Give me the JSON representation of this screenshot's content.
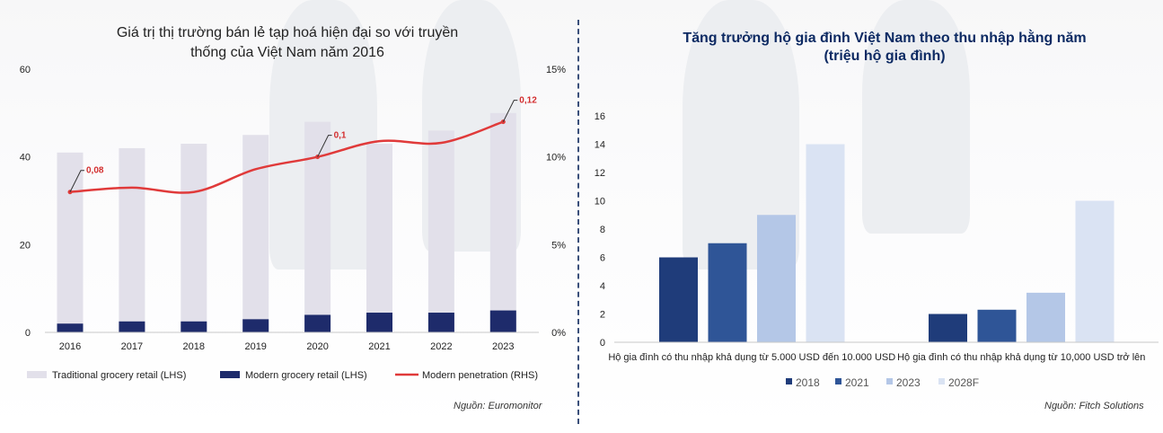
{
  "left_chart": {
    "title_line1": "Giá trị thị trường bán lẻ tạp hoá hiện đại so với truyền",
    "title_line2": "thống của Việt Nam năm 2016",
    "source": "Nguồn: Euromonitor",
    "chart_data": {
      "type": "bar",
      "categories": [
        "2016",
        "2017",
        "2018",
        "2019",
        "2020",
        "2021",
        "2022",
        "2023"
      ],
      "series": [
        {
          "name": "Traditional grocery retail (LHS)",
          "kind": "bar",
          "axis": "left",
          "color": "#e2e0ea",
          "values": [
            41,
            42,
            43,
            45,
            48,
            43,
            46,
            50
          ]
        },
        {
          "name": "Modern grocery retail (LHS)",
          "kind": "bar",
          "axis": "left",
          "color": "#1e2b6b",
          "values": [
            2,
            2.5,
            2.5,
            3,
            4,
            4.5,
            4.5,
            5
          ]
        },
        {
          "name": "Modern penetration (RHS)",
          "kind": "line",
          "axis": "right",
          "color": "#e03a3a",
          "values": [
            0.08,
            0.0825,
            0.08,
            0.093,
            0.1,
            0.109,
            0.108,
            0.12
          ]
        }
      ],
      "y_left": {
        "ylim": [
          0,
          60
        ],
        "ticks": [
          "0",
          "20",
          "40",
          "60"
        ],
        "values": [
          0,
          20,
          40,
          60
        ]
      },
      "y_right": {
        "ylim": [
          0,
          0.15
        ],
        "ticks": [
          "0%",
          "5%",
          "10%",
          "15%"
        ],
        "values": [
          0,
          0.05,
          0.1,
          0.15
        ]
      },
      "annotations": [
        {
          "index": 0,
          "text": "0,08"
        },
        {
          "index": 4,
          "text": "0,1"
        },
        {
          "index": 7,
          "text": "0,12"
        }
      ],
      "legend_placement": "bottom"
    }
  },
  "right_chart": {
    "title_line1": "Tăng trưởng hộ gia đình Việt Nam theo thu nhập hằng năm",
    "title_line2": "(triệu hộ gia đình)",
    "source": "Nguồn: Fitch Solutions",
    "chart_data": {
      "type": "bar",
      "categories": [
        "Hộ gia đình có thu nhập khả dụng từ 5.000 USD đến 10.000 USD",
        "Hộ gia đình có thu nhập khả dụng từ 10,000 USD trở lên"
      ],
      "series": [
        {
          "name": "2018",
          "color": "#1f3c7a",
          "values": [
            6,
            2
          ]
        },
        {
          "name": "2021",
          "color": "#2f5597",
          "values": [
            7,
            2.3
          ]
        },
        {
          "name": "2023",
          "color": "#b4c7e7",
          "values": [
            9,
            3.5
          ]
        },
        {
          "name": "2028F",
          "color": "#dae3f3",
          "values": [
            14,
            10
          ]
        }
      ],
      "ylim": [
        0,
        16
      ],
      "yticks": [
        "0",
        "2",
        "4",
        "6",
        "8",
        "10",
        "12",
        "14",
        "16"
      ],
      "legend_placement": "bottom"
    }
  }
}
